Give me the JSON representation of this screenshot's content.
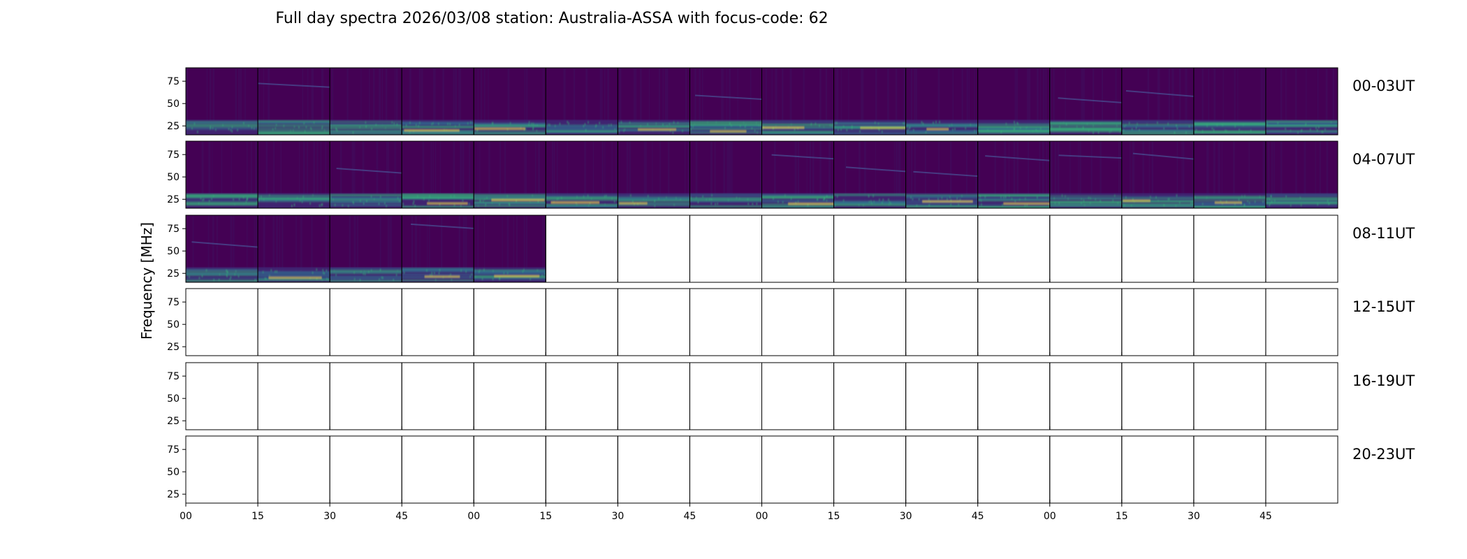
{
  "chart_data": {
    "type": "heatmap",
    "title": "Full day spectra 2026/03/08 station: Australia-ASSA with focus-code: 62",
    "ylabel": "Frequency [MHz]",
    "xlabel": "",
    "ylim": [
      15,
      90
    ],
    "y_ticks": [
      "75",
      "50",
      "25"
    ],
    "y_tick_values": [
      75,
      50,
      25
    ],
    "x_tick_labels": [
      "00",
      "15",
      "30",
      "45",
      "00",
      "15",
      "30",
      "45",
      "00",
      "15",
      "30",
      "45",
      "00",
      "15",
      "30",
      "45"
    ],
    "rows": [
      {
        "label": "00-03UT",
        "panels_with_data": 16
      },
      {
        "label": "04-07UT",
        "panels_with_data": 16
      },
      {
        "label": "08-11UT",
        "panels_with_data": 5
      },
      {
        "label": "12-15UT",
        "panels_with_data": 0
      },
      {
        "label": "16-19UT",
        "panels_with_data": 0
      },
      {
        "label": "20-23UT",
        "panels_with_data": 0
      }
    ],
    "panels_per_row": 16,
    "panel_minutes": 15,
    "colormap": "viridis",
    "colors": {
      "background": "#440154",
      "mid": "#31688e",
      "bright": "#35b779",
      "peak": "#fde725"
    }
  }
}
